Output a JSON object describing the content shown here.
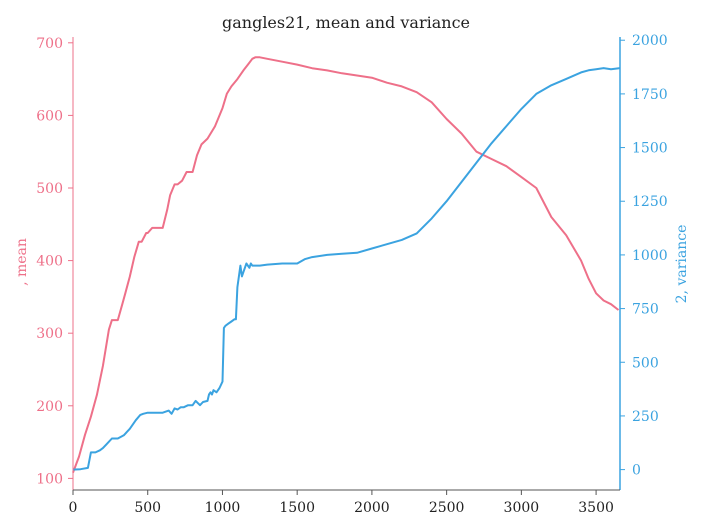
{
  "chart_data": {
    "type": "line",
    "title": "gangles21, mean and variance",
    "xlabel": "",
    "xlim": [
      0,
      3660
    ],
    "x_ticks": [
      0,
      500,
      1000,
      1500,
      2000,
      2500,
      3000,
      3500
    ],
    "grid": false,
    "colors": {
      "left": "#ee7089",
      "right": "#3ba3e0",
      "axis": "#555555",
      "text": "#222222"
    },
    "left_axis": {
      "label": ", mean",
      "ylim": [
        84,
        708
      ],
      "ticks": [
        100,
        200,
        300,
        400,
        500,
        600,
        700
      ]
    },
    "right_axis": {
      "label": "2, variance",
      "ylim": [
        -95,
        2015
      ],
      "ticks": [
        0,
        250,
        500,
        750,
        1000,
        1250,
        1500,
        1750,
        2000
      ]
    },
    "series": [
      {
        "axis": "left",
        "x": [
          0,
          40,
          80,
          120,
          160,
          200,
          240,
          260,
          300,
          330,
          350,
          380,
          410,
          440,
          460,
          490,
          500,
          530,
          560,
          600,
          630,
          650,
          680,
          700,
          730,
          760,
          800,
          830,
          860,
          900,
          950,
          980,
          1000,
          1030,
          1060,
          1100,
          1140,
          1170,
          1200,
          1220,
          1250,
          1300,
          1400,
          1500,
          1600,
          1700,
          1800,
          1900,
          2000,
          2100,
          2200,
          2300,
          2400,
          2500,
          2600,
          2700,
          2800,
          2900,
          3000,
          3100,
          3200,
          3300,
          3400,
          3450,
          3500,
          3550,
          3600,
          3650
        ],
        "values": [
          108,
          130,
          160,
          185,
          215,
          255,
          305,
          318,
          318,
          340,
          355,
          378,
          405,
          426,
          426,
          438,
          438,
          445,
          445,
          445,
          470,
          490,
          505,
          505,
          510,
          522,
          522,
          545,
          560,
          568,
          585,
          600,
          610,
          630,
          640,
          650,
          662,
          670,
          678,
          680,
          680,
          678,
          674,
          670,
          665,
          662,
          658,
          655,
          652,
          645,
          640,
          632,
          618,
          595,
          575,
          550,
          540,
          530,
          515,
          500,
          460,
          435,
          400,
          375,
          355,
          345,
          340,
          332
        ]
      },
      {
        "axis": "right",
        "x": [
          0,
          50,
          100,
          120,
          150,
          180,
          200,
          220,
          260,
          300,
          340,
          380,
          420,
          450,
          470,
          500,
          550,
          600,
          640,
          660,
          680,
          700,
          720,
          740,
          770,
          800,
          820,
          850,
          870,
          900,
          910,
          920,
          930,
          940,
          960,
          980,
          1000,
          1010,
          1020,
          1040,
          1060,
          1080,
          1090,
          1100,
          1110,
          1120,
          1130,
          1140,
          1160,
          1180,
          1190,
          1200,
          1250,
          1300,
          1400,
          1500,
          1550,
          1600,
          1700,
          1800,
          1900,
          2000,
          2100,
          2200,
          2300,
          2400,
          2500,
          2600,
          2700,
          2800,
          2900,
          3000,
          3100,
          3200,
          3300,
          3400,
          3450,
          3500,
          3550,
          3600,
          3660
        ],
        "values": [
          0,
          2,
          8,
          80,
          80,
          90,
          100,
          115,
          145,
          145,
          160,
          190,
          230,
          255,
          260,
          265,
          265,
          265,
          275,
          260,
          285,
          280,
          290,
          290,
          300,
          300,
          320,
          300,
          315,
          320,
          350,
          360,
          350,
          370,
          360,
          380,
          410,
          660,
          670,
          680,
          690,
          700,
          700,
          850,
          900,
          950,
          900,
          920,
          960,
          940,
          960,
          950,
          950,
          955,
          960,
          960,
          980,
          990,
          1000,
          1005,
          1010,
          1030,
          1050,
          1070,
          1100,
          1170,
          1250,
          1340,
          1430,
          1520,
          1600,
          1680,
          1750,
          1790,
          1820,
          1850,
          1860,
          1865,
          1870,
          1865,
          1870
        ]
      }
    ]
  }
}
